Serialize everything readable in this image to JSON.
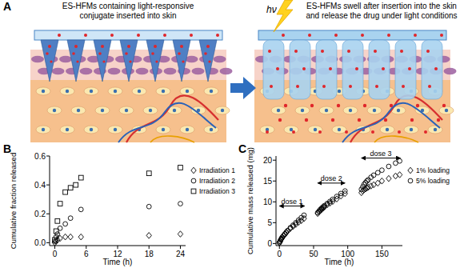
{
  "diagram": {
    "panel": "A",
    "left_caption": [
      "ES-HFMs containing light-responsive",
      "conjugate inserted into skin"
    ],
    "right_caption": [
      "ES-HFMs swell after insertion into the skin",
      "and release the drug under light conditions"
    ],
    "light_symbol": "hν"
  },
  "chart_data": [
    {
      "type": "scatter",
      "title": "B",
      "x_label": "Time (h)",
      "y_label": "Cumulative fraction released",
      "xlim": [
        -1,
        25
      ],
      "xticks": [
        0,
        6,
        12,
        18,
        24
      ],
      "ylim": [
        -0.02,
        0.6
      ],
      "yticks": [
        {
          "value": 0,
          "label": "0.0"
        },
        {
          "value": 0.2,
          "label": "0.2"
        },
        {
          "value": 0.4,
          "label": "0.4"
        },
        {
          "value": 0.6,
          "label": "0.6"
        }
      ],
      "legend": "right",
      "series": [
        {
          "name": "Irradiation 1",
          "color": "#000000",
          "marker": "diamond",
          "x": [
            0,
            0.25,
            0.5,
            1,
            2,
            3,
            5,
            18,
            24
          ],
          "values": [
            0,
            0.01,
            0.02,
            0.03,
            0.04,
            0.04,
            0.04,
            0.05,
            0.06
          ]
        },
        {
          "name": "Irradiation 2",
          "color": "#000000",
          "marker": "circle",
          "x": [
            0,
            0.25,
            0.5,
            1,
            2,
            3,
            5,
            18,
            24
          ],
          "values": [
            0.01,
            0.04,
            0.06,
            0.1,
            0.13,
            0.17,
            0.23,
            0.25,
            0.27
          ]
        },
        {
          "name": "Irradiation 3",
          "color": "#000000",
          "marker": "square",
          "x": [
            0,
            0.25,
            0.5,
            1,
            2,
            3,
            4,
            5,
            18,
            24
          ],
          "values": [
            0.02,
            0.08,
            0.15,
            0.27,
            0.35,
            0.38,
            0.4,
            0.45,
            0.48,
            0.52
          ]
        }
      ]
    },
    {
      "type": "scatter",
      "title": "C",
      "x_label": "Time (h)",
      "y_label": "Cumulative mass released (mg)",
      "xlim": [
        -5,
        180
      ],
      "xticks": [
        0,
        50,
        100,
        150
      ],
      "ylim": [
        -0.5,
        21
      ],
      "yticks": [
        0,
        5,
        10,
        15,
        20
      ],
      "legend": "right",
      "annotations": [
        {
          "text": "dose 1",
          "x": [
            0,
            37
          ],
          "y": 9
        },
        {
          "text": "dose 2",
          "x": [
            56,
            96
          ],
          "y": 14.5
        },
        {
          "text": "dose 3",
          "x": [
            120,
            177
          ],
          "y": 20.5
        }
      ],
      "series": [
        {
          "name": "1% loading",
          "color": "#000000",
          "marker": "diamond",
          "x": [
            0,
            1,
            2,
            3,
            4,
            6,
            8,
            10,
            12,
            16,
            20,
            24,
            28,
            32,
            36,
            56,
            58,
            60,
            62,
            64,
            66,
            70,
            74,
            78,
            84,
            90,
            96,
            120,
            122,
            124,
            126,
            128,
            130,
            134,
            138,
            144,
            150,
            160,
            170,
            176
          ],
          "values": [
            0.2,
            0.5,
            0.9,
            1.1,
            1.4,
            1.8,
            2.2,
            2.6,
            3.0,
            3.6,
            4.1,
            4.6,
            5.1,
            5.5,
            6.0,
            7.2,
            7.6,
            7.9,
            8.2,
            8.5,
            8.8,
            9.3,
            9.7,
            10.1,
            10.7,
            11.4,
            12.0,
            12.2,
            12.6,
            12.9,
            13.1,
            13.3,
            13.5,
            13.8,
            14.1,
            14.5,
            15.0,
            15.6,
            16.2,
            16.5
          ]
        },
        {
          "name": "5% loading",
          "color": "#000000",
          "marker": "circle",
          "x": [
            0,
            1,
            2,
            3,
            4,
            6,
            8,
            10,
            12,
            16,
            20,
            24,
            28,
            32,
            36,
            56,
            58,
            60,
            62,
            64,
            66,
            70,
            74,
            78,
            84,
            90,
            96,
            120,
            122,
            124,
            126,
            128,
            130,
            134,
            138,
            144,
            150,
            160,
            170,
            176
          ],
          "values": [
            0.2,
            0.5,
            0.9,
            1.2,
            1.5,
            1.9,
            2.3,
            2.7,
            3.1,
            3.8,
            4.4,
            5.0,
            5.6,
            6.2,
            6.8,
            7.4,
            7.8,
            8.2,
            8.5,
            8.8,
            9.1,
            9.6,
            10.1,
            10.6,
            11.3,
            12.0,
            12.6,
            13.0,
            13.6,
            14.2,
            14.6,
            15.0,
            15.3,
            15.9,
            16.4,
            17.0,
            17.6,
            18.5,
            19.3,
            19.8
          ]
        }
      ]
    }
  ]
}
